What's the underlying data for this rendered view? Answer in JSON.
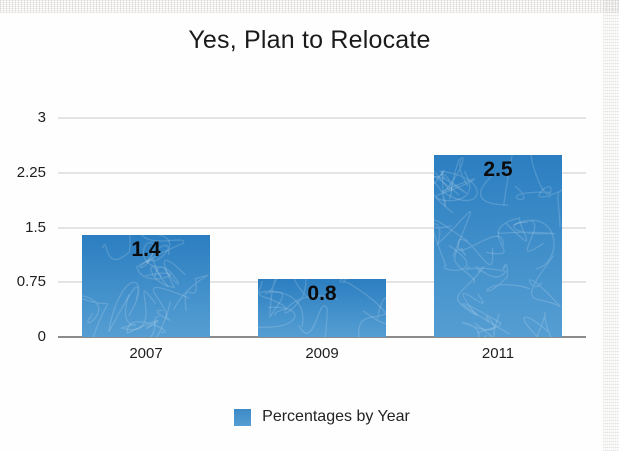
{
  "title": "Yes, Plan to Relocate",
  "chart_data": {
    "type": "bar",
    "title": "Yes, Plan to Relocate",
    "categories": [
      "2007",
      "2009",
      "2011"
    ],
    "values": [
      1.4,
      0.8,
      2.5
    ],
    "value_labels": [
      "1.4",
      "0.8",
      "2.5"
    ],
    "xlabel": "",
    "ylabel": "",
    "ylim": [
      0,
      3
    ],
    "yticks": [
      0,
      0.75,
      1.5,
      2.25,
      3
    ],
    "ytick_labels": [
      "0",
      "0.75",
      "1.5",
      "2.25",
      "3"
    ],
    "grid": true,
    "legend_position": "bottom",
    "legend": [
      {
        "label": "Percentages by Year",
        "color": "#4593cb"
      }
    ],
    "bar_color_top": "#2b7ec0",
    "bar_color_bottom": "#559ed3",
    "gridline_color": "#e4e4e4",
    "baseline_color": "#8b8b8b",
    "value_label_color": "#0b0b0b"
  },
  "legend": {
    "label": "Percentages by Year"
  }
}
